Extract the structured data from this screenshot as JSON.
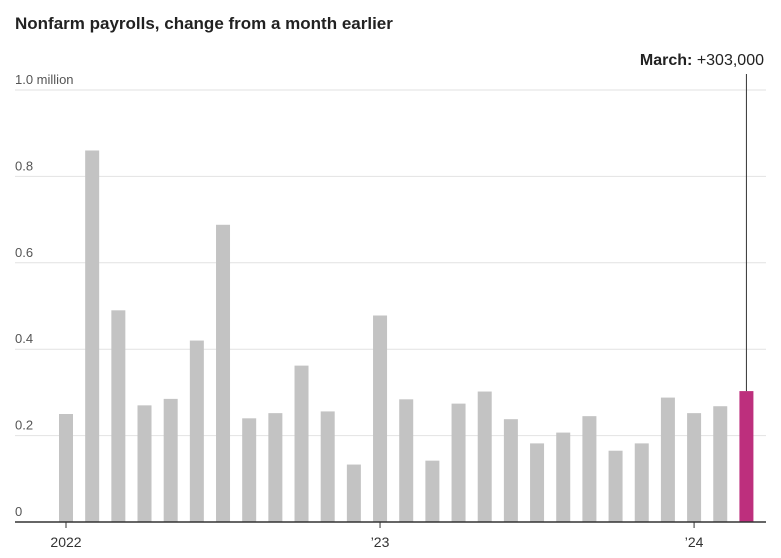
{
  "title": "Nonfarm payrolls, change from a month earlier",
  "chart_data": {
    "type": "bar",
    "title": "Nonfarm payrolls, change from a month earlier",
    "xlabel": "",
    "ylabel": "",
    "unit": "million",
    "ylim": [
      0,
      1.0
    ],
    "y_ticks": [
      {
        "value": 0,
        "label": "0"
      },
      {
        "value": 0.2,
        "label": "0.2"
      },
      {
        "value": 0.4,
        "label": "0.4"
      },
      {
        "value": 0.6,
        "label": "0.6"
      },
      {
        "value": 0.8,
        "label": "0.8"
      },
      {
        "value": 1.0,
        "label": "1.0 million"
      }
    ],
    "x_ticks": [
      {
        "category": "2022-01",
        "label": "2022"
      },
      {
        "category": "2023-01",
        "label": "’23"
      },
      {
        "category": "2024-01",
        "label": "’24"
      }
    ],
    "categories": [
      "2022-01",
      "2022-02",
      "2022-03",
      "2022-04",
      "2022-05",
      "2022-06",
      "2022-07",
      "2022-08",
      "2022-09",
      "2022-10",
      "2022-11",
      "2022-12",
      "2023-01",
      "2023-02",
      "2023-03",
      "2023-04",
      "2023-05",
      "2023-06",
      "2023-07",
      "2023-08",
      "2023-09",
      "2023-10",
      "2023-11",
      "2023-12",
      "2024-01",
      "2024-02",
      "2024-03"
    ],
    "values": [
      0.25,
      0.86,
      0.49,
      0.27,
      0.285,
      0.42,
      0.688,
      0.24,
      0.252,
      0.362,
      0.256,
      0.133,
      0.478,
      0.284,
      0.142,
      0.274,
      0.302,
      0.238,
      0.182,
      0.207,
      0.245,
      0.165,
      0.182,
      0.288,
      0.252,
      0.268,
      0.303
    ],
    "highlight_index": 26,
    "grid": true,
    "colors": {
      "bar": "#c3c3c3",
      "highlight": "#bd2f7d",
      "grid": "#e2e2e2",
      "axis": "#333333"
    },
    "annotation": {
      "label": "March:",
      "value": "+303,000"
    }
  }
}
